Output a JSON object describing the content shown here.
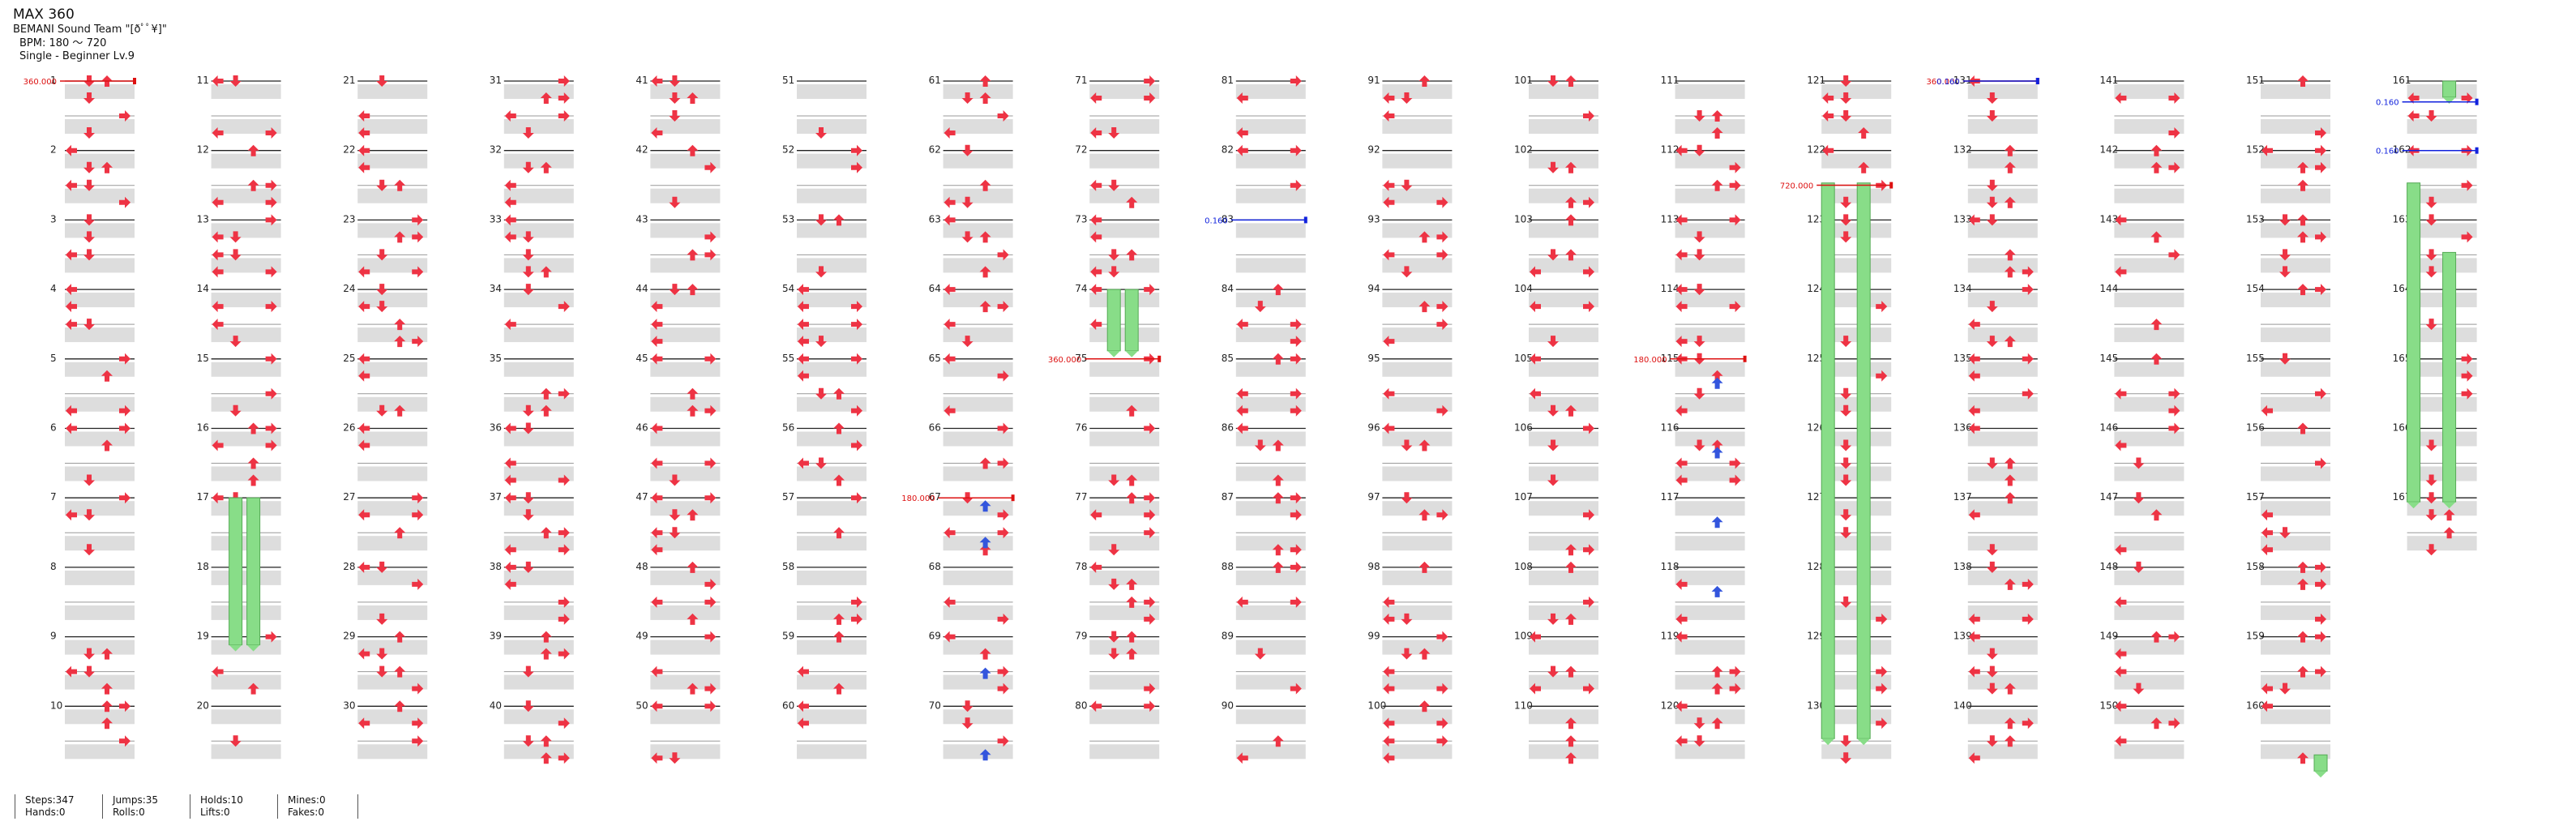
{
  "song": {
    "title": "MAX 360",
    "artist": "BEMANI Sound Team \"[ðﾟﾟ¥]\"",
    "bpm_line": "BPM: 180 ～ 720",
    "difficulty_line": "Single - Beginner  Lv.9"
  },
  "colors": {
    "arrow": "#ee3344",
    "arrow_special": "#3355dd",
    "hold": "#88dd88",
    "bpm_marker": "#dd1111",
    "speed_marker": "#1122dd",
    "measure_shade": "#dddddd"
  },
  "chart_columns": [
    {
      "measures": [
        "1",
        "2",
        "3",
        "4",
        "5",
        "6",
        "7",
        "8",
        "9",
        "10"
      ]
    },
    {
      "measures": [
        "11",
        "12",
        "13",
        "14",
        "15",
        "16",
        "17",
        "18",
        "19",
        "20"
      ]
    },
    {
      "measures": [
        "21",
        "22",
        "23",
        "24",
        "25",
        "26",
        "27",
        "28",
        "29",
        "30"
      ]
    },
    {
      "measures": [
        "31",
        "32",
        "33",
        "34",
        "35",
        "36",
        "37",
        "38",
        "39",
        "40"
      ]
    },
    {
      "measures": [
        "41",
        "42",
        "43",
        "44",
        "45",
        "46",
        "47",
        "48",
        "49",
        "50"
      ]
    },
    {
      "measures": [
        "51",
        "52",
        "53",
        "54",
        "55",
        "56",
        "57",
        "58",
        "59",
        "60"
      ]
    },
    {
      "measures": [
        "61",
        "62",
        "63",
        "64",
        "65",
        "66",
        "67",
        "68",
        "69",
        "70"
      ]
    },
    {
      "measures": [
        "71",
        "72",
        "73",
        "74",
        "75",
        "76",
        "77",
        "78",
        "79",
        "80"
      ]
    },
    {
      "measures": [
        "81",
        "82",
        "83",
        "84",
        "85",
        "86",
        "87",
        "88",
        "89",
        "90"
      ]
    },
    {
      "measures": [
        "91",
        "92",
        "93",
        "94",
        "95",
        "96",
        "97",
        "98",
        "99",
        "100"
      ]
    },
    {
      "measures": [
        "101",
        "102",
        "103",
        "104",
        "105",
        "106",
        "107",
        "108",
        "109",
        "110"
      ]
    },
    {
      "measures": [
        "111",
        "112",
        "113",
        "114",
        "115",
        "116",
        "117",
        "118",
        "119",
        "120"
      ]
    },
    {
      "measures": [
        "121",
        "122",
        "123",
        "124",
        "125",
        "126",
        "127",
        "128",
        "129",
        "130"
      ]
    },
    {
      "measures": [
        "131",
        "132",
        "133",
        "134",
        "135",
        "136",
        "137",
        "138",
        "139",
        "140"
      ]
    },
    {
      "measures": [
        "141",
        "142",
        "143",
        "144",
        "145",
        "146",
        "147",
        "148",
        "149",
        "150"
      ]
    },
    {
      "measures": [
        "151",
        "152",
        "153",
        "154",
        "155",
        "156",
        "157",
        "158",
        "159",
        "160"
      ]
    },
    {
      "measures": [
        "161",
        "162",
        "163",
        "164",
        "165",
        "166",
        "167"
      ]
    }
  ],
  "markers": [
    {
      "label": "360.000",
      "kind": "bpm",
      "measure": 1
    },
    {
      "label": "180.000",
      "kind": "bpm",
      "measure": 67
    },
    {
      "label": "360.000",
      "kind": "bpm",
      "measure": 75
    },
    {
      "label": "0.160",
      "kind": "speed",
      "measure": 83
    },
    {
      "label": "180.000",
      "kind": "bpm",
      "measure": 115
    },
    {
      "label": "720.000",
      "kind": "bpm",
      "measure": 122.5
    },
    {
      "label": "360.000",
      "kind": "bpm",
      "measure": 131
    },
    {
      "label": "0.160",
      "kind": "speed",
      "measure": 131
    },
    {
      "label": "0.160",
      "kind": "speed",
      "measure": 161.3
    },
    {
      "label": "0.160",
      "kind": "speed",
      "measure": 162
    }
  ],
  "stats": [
    {
      "a": "Steps:347",
      "b": "Hands:0"
    },
    {
      "a": "Jumps:35",
      "b": "Rolls:0"
    },
    {
      "a": "Holds:10",
      "b": "Lifts:0"
    },
    {
      "a": "Mines:0",
      "b": "Fakes:0"
    }
  ]
}
